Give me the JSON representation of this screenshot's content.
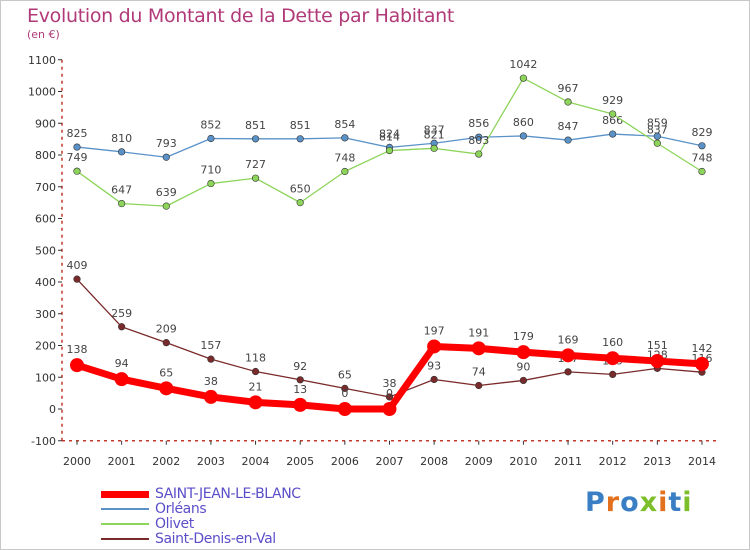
{
  "title": "Evolution du Montant de la Dette par Habitant",
  "unit_label": "(en €)",
  "logo": {
    "text": "Proxiti",
    "colors": [
      "#3a7fc4",
      "#e2701d",
      "#3a7fc4",
      "#7cbf2a",
      "#e2701d",
      "#3a7fc4",
      "#7cbf2a"
    ]
  },
  "chart_data": {
    "type": "line",
    "title": "Evolution du Montant de la Dette par Habitant",
    "ylabel": "(en €)",
    "xlabel": "",
    "categories": [
      "2000",
      "2001",
      "2002",
      "2003",
      "2004",
      "2005",
      "2006",
      "2007",
      "2008",
      "2009",
      "2010",
      "2011",
      "2012",
      "2013",
      "2014"
    ],
    "ylim": [
      -100,
      1100
    ],
    "yticks": [
      "-100",
      "0",
      "100",
      "200",
      "300",
      "400",
      "500",
      "600",
      "700",
      "800",
      "900",
      "1000",
      "1100"
    ],
    "grid": false,
    "series": [
      {
        "name": "Orléans",
        "color": "#5a92c8",
        "values": [
          825,
          810,
          793,
          852,
          851,
          851,
          854,
          824,
          837,
          856,
          860,
          847,
          866,
          859,
          829
        ],
        "labels": [
          "825",
          "810",
          "793",
          "852",
          "851",
          "851",
          "854",
          "824",
          "837",
          "856",
          "860",
          "847",
          "866",
          "859",
          "829"
        ]
      },
      {
        "name": "Olivet",
        "color": "#8dd45a",
        "values": [
          749,
          647,
          639,
          710,
          727,
          650,
          748,
          814,
          821,
          803,
          1042,
          967,
          929,
          837,
          748
        ],
        "labels": [
          "749",
          "647",
          "639",
          "710",
          "727",
          "650",
          "748",
          "814",
          "821",
          "803",
          "1042",
          "967",
          "929",
          "837",
          "748"
        ]
      },
      {
        "name": "Saint-Denis-en-Val",
        "color": "#7a2a2a",
        "values": [
          409,
          259,
          209,
          157,
          118,
          92,
          65,
          38,
          93,
          74,
          90,
          117,
          109,
          128,
          116
        ],
        "labels": [
          "409",
          "259",
          "209",
          "157",
          "118",
          "92",
          "65",
          "38",
          "93",
          "74",
          "90",
          "117",
          "109",
          "128",
          "116"
        ]
      },
      {
        "name": "SAINT-JEAN-LE-BLANC",
        "color": "#ff0000",
        "values": [
          138,
          94,
          65,
          38,
          21,
          13,
          0,
          0,
          197,
          191,
          179,
          169,
          160,
          151,
          142
        ],
        "labels": [
          "138",
          "94",
          "65",
          "38",
          "21",
          "13",
          "0",
          "0",
          "197",
          "191",
          "179",
          "169",
          "160",
          "151",
          "142"
        ]
      }
    ],
    "legend": [
      "SAINT-JEAN-LE-BLANC",
      "Orléans",
      "Olivet",
      "Saint-Denis-en-Val"
    ],
    "legend_position": "bottom-left"
  }
}
